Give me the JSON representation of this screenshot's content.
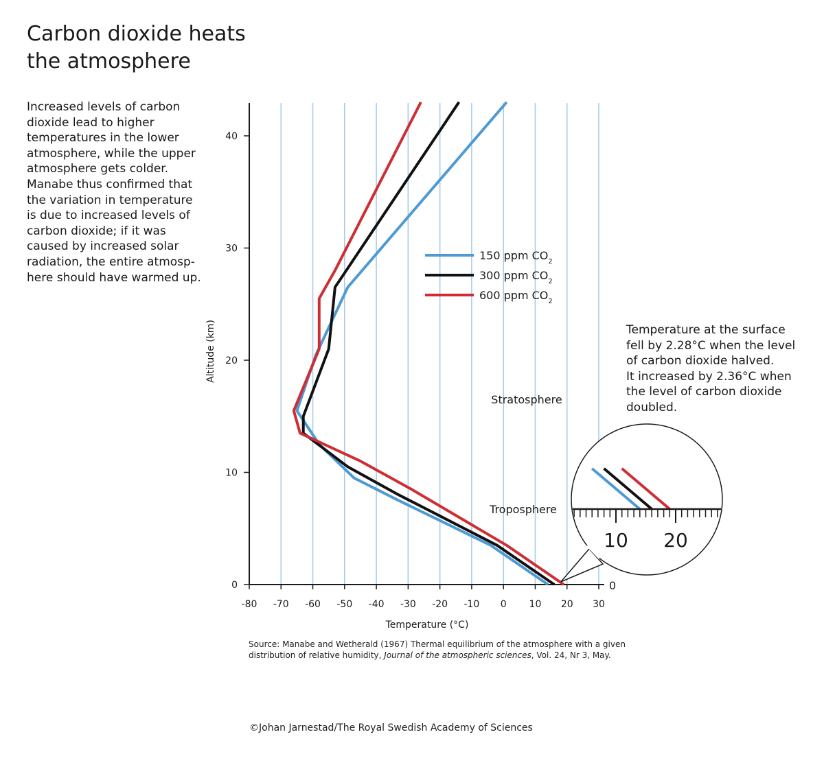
{
  "title_lines": [
    "Carbon dioxide heats",
    "the atmosphere"
  ],
  "intro_lines": [
    "Increased levels of carbon",
    "dioxide lead to higher",
    "temperatures in the lower",
    "atmosphere, while the upper",
    "atmosphere gets colder.",
    "Manabe thus confirmed that",
    "the variation in temperature",
    "is due to increased levels of",
    "carbon dioxide; if it was",
    "caused by increased solar",
    "radiation, the entire atmosp-",
    "here should have warmed up."
  ],
  "note_lines": [
    "Temperature at the surface",
    "fell by 2.28°C when the level",
    "of carbon dioxide halved.",
    "It increased by 2.36°C when",
    "the level of carbon dioxide",
    "doubled."
  ],
  "source": {
    "line1": "Source: Manabe and Wetherald (1967) Thermal equilibrium of the atmosphere with a given",
    "line2_prefix": "distribution of relative humidity, ",
    "line2_journal": "Journal of the atmospheric sciences",
    "line2_suffix": ", Vol. 24, Nr 3, May."
  },
  "credit": "©Johan Jarnestad/The Royal Swedish Academy of Sciences",
  "chart_data": {
    "type": "line",
    "xlabel": "Temperature (°C)",
    "ylabel": "Altitude (km)",
    "xlim": [
      -80,
      30
    ],
    "ylim": [
      0,
      43
    ],
    "x_ticks": [
      -80,
      -70,
      -60,
      -50,
      -40,
      -30,
      -20,
      -10,
      0,
      10,
      20,
      30
    ],
    "y_ticks": [
      0,
      10,
      20,
      30,
      40
    ],
    "vertical_gridlines": true,
    "grid_color": "#a9cce8",
    "legend_position": "center",
    "annotations": [
      "Stratosphere",
      "Troposphere"
    ],
    "series": [
      {
        "name": "150 ppm CO",
        "subscript": "2",
        "color": "#4e9ad4",
        "points": [
          [
            14,
            0
          ],
          [
            -4,
            3.5
          ],
          [
            -33,
            7.5
          ],
          [
            -47,
            9.5
          ],
          [
            -58,
            12.5
          ],
          [
            -65,
            15.5
          ],
          [
            -59,
            20.5
          ],
          [
            -49,
            26.5
          ],
          [
            1,
            43
          ]
        ]
      },
      {
        "name": "300 ppm CO",
        "subscript": "2",
        "color": "#111111",
        "points": [
          [
            16,
            0
          ],
          [
            -2,
            3.5
          ],
          [
            -33,
            8
          ],
          [
            -49,
            10.5
          ],
          [
            -63,
            13.5
          ],
          [
            -63,
            15
          ],
          [
            -55,
            21
          ],
          [
            -53,
            26.5
          ],
          [
            -14,
            43
          ]
        ]
      },
      {
        "name": "600 ppm CO",
        "subscript": "2",
        "color": "#cc2e34",
        "points": [
          [
            19,
            0
          ],
          [
            1,
            3.5
          ],
          [
            -29,
            8.5
          ],
          [
            -45,
            11
          ],
          [
            -64,
            13.5
          ],
          [
            -66,
            15.5
          ],
          [
            -58,
            21
          ],
          [
            -58,
            25.5
          ],
          [
            -53,
            28
          ],
          [
            -26,
            43
          ]
        ]
      }
    ],
    "inset": {
      "description_ticks": [
        "10",
        "20"
      ],
      "end_label": "0"
    }
  }
}
